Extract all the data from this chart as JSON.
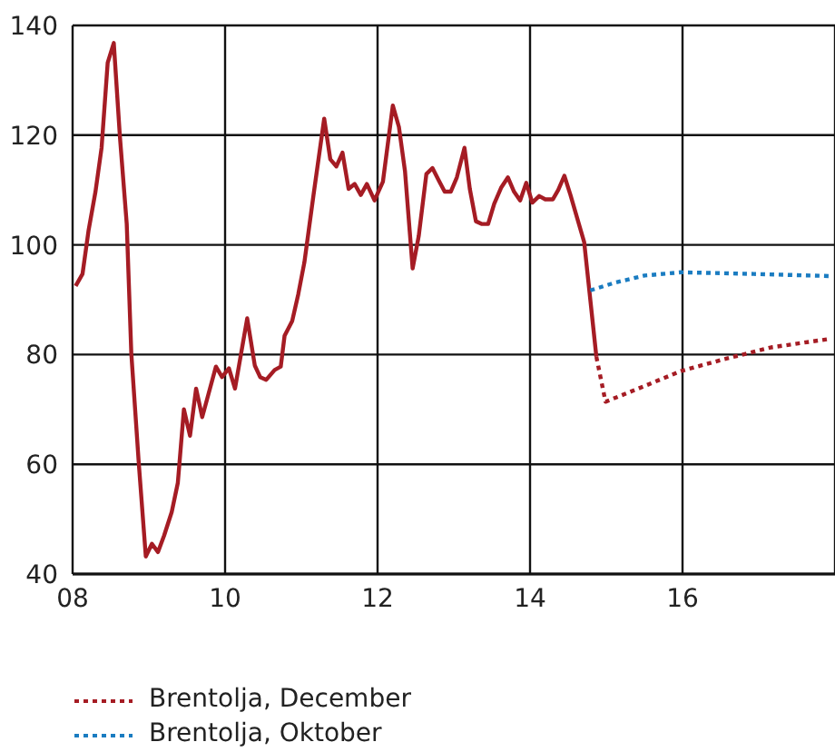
{
  "chart_data": {
    "type": "line",
    "xlim": [
      2008,
      2018
    ],
    "xticks": [
      {
        "value": 2008,
        "label": "08"
      },
      {
        "value": 2010,
        "label": "10"
      },
      {
        "value": 2012,
        "label": "12"
      },
      {
        "value": 2014,
        "label": "14"
      },
      {
        "value": 2016,
        "label": "16"
      }
    ],
    "ylim": [
      40,
      140
    ],
    "yticks": [
      40,
      60,
      80,
      100,
      120,
      140
    ],
    "grid": true,
    "legend": "bottom left",
    "marker": "none",
    "series": [
      {
        "color": "#a51c24",
        "line_style": "solid",
        "x": [
          2008.04,
          2008.13,
          2008.21,
          2008.3,
          2008.38,
          2008.46,
          2008.54,
          2008.62,
          2008.71,
          2008.77,
          2008.87,
          2008.96,
          2009.04,
          2009.12,
          2009.2,
          2009.3,
          2009.38,
          2009.46,
          2009.54,
          2009.62,
          2009.7,
          2009.88,
          2009.96,
          2010.05,
          2010.13,
          2010.29,
          2010.39,
          2010.46,
          2010.54,
          2010.65,
          2010.73,
          2010.78,
          2010.88,
          2010.96,
          2011.04,
          2011.16,
          2011.3,
          2011.38,
          2011.46,
          2011.54,
          2011.62,
          2011.7,
          2011.78,
          2011.86,
          2011.96,
          2012.07,
          2012.2,
          2012.28,
          2012.36,
          2012.46,
          2012.54,
          2012.64,
          2012.72,
          2012.8,
          2012.88,
          2012.96,
          2013.04,
          2013.14,
          2013.21,
          2013.29,
          2013.37,
          2013.45,
          2013.53,
          2013.62,
          2013.71,
          2013.79,
          2013.87,
          2013.95,
          2014.03,
          2014.12,
          2014.2,
          2014.3,
          2014.37,
          2014.45,
          2014.53,
          2014.62,
          2014.71,
          2014.87
        ],
        "values": [
          92.5,
          94.7,
          102.7,
          109.7,
          117.7,
          133.2,
          136.8,
          119.8,
          103.8,
          80.2,
          59.8,
          43.2,
          45.5,
          44,
          47,
          51.3,
          56.6,
          70,
          65.2,
          73.8,
          68.6,
          77.8,
          75.9,
          77.5,
          73.8,
          86.6,
          78,
          75.9,
          75.4,
          77.2,
          77.8,
          83.4,
          86.1,
          91,
          96.8,
          109.1,
          123,
          115.6,
          114.3,
          116.8,
          110.2,
          111.1,
          109.1,
          111.1,
          108.1,
          111.5,
          125.4,
          121.5,
          113.4,
          95.7,
          101.6,
          112.9,
          114,
          111.8,
          109.7,
          109.7,
          112.3,
          117.7,
          110.2,
          104.3,
          103.8,
          103.8,
          107.5,
          110.4,
          112.3,
          109.7,
          108.1,
          111.3,
          107.7,
          108.9,
          108.3,
          108.3,
          110,
          112.6,
          109.1,
          104.8,
          100.5,
          79.6
        ]
      },
      {
        "name": "Brentolja, December",
        "color": "#a51c24",
        "line_style": "dotted",
        "x": [
          2014.87,
          2014.99,
          2015.42,
          2015.98,
          2016.53,
          2017.16,
          2017.95
        ],
        "values": [
          79.6,
          71.4,
          73.8,
          77,
          79.1,
          81.3,
          82.9
        ]
      },
      {
        "name": "Brentolja, Oktober",
        "color": "#1a7cc1",
        "line_style": "dotted",
        "x": [
          2014.79,
          2015.11,
          2015.5,
          2015.98,
          2016.93,
          2017.95
        ],
        "values": [
          91.7,
          93.1,
          94.4,
          95,
          94.7,
          94.3
        ]
      }
    ]
  }
}
